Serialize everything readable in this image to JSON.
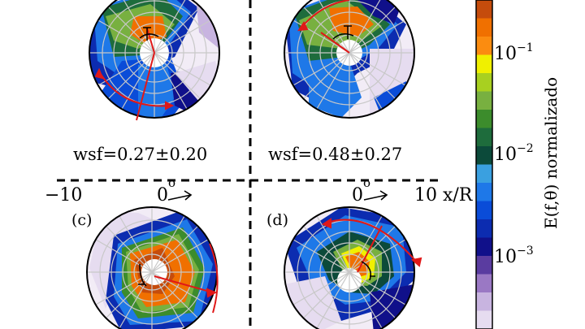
{
  "panels": [
    {
      "label": "",
      "wsf": "wsf=0.27±0.20"
    },
    {
      "label": "",
      "wsf": "wsf=0.48±0.27"
    },
    {
      "label": "(c)",
      "wsf": ""
    },
    {
      "label": "(d)",
      "wsf": ""
    }
  ],
  "axis": {
    "left": "−10",
    "center": "0",
    "right": "10 x/R",
    "degree": "o"
  },
  "colorbar": {
    "title": "E(f,θ) normalizado",
    "ticks": [
      {
        "base": "10",
        "exp": "−1"
      },
      {
        "base": "10",
        "exp": "−2"
      },
      {
        "base": "10",
        "exp": "−3"
      }
    ],
    "colors": [
      "#c54c0c",
      "#f07000",
      "#fb8c10",
      "#f0f000",
      "#a8d020",
      "#78b040",
      "#3c8c2c",
      "#1e6c3c",
      "#0c4a3a",
      "#3aa0e0",
      "#1e78e8",
      "#0a4cd8",
      "#0c2cb0",
      "#10108a",
      "#5a3ca0",
      "#9a78c4",
      "#c8b4e0",
      "#e6dcf0"
    ]
  },
  "colors": {
    "red": "#e01818",
    "green_dark": "#0c4a3a",
    "orange": "#f07000"
  }
}
